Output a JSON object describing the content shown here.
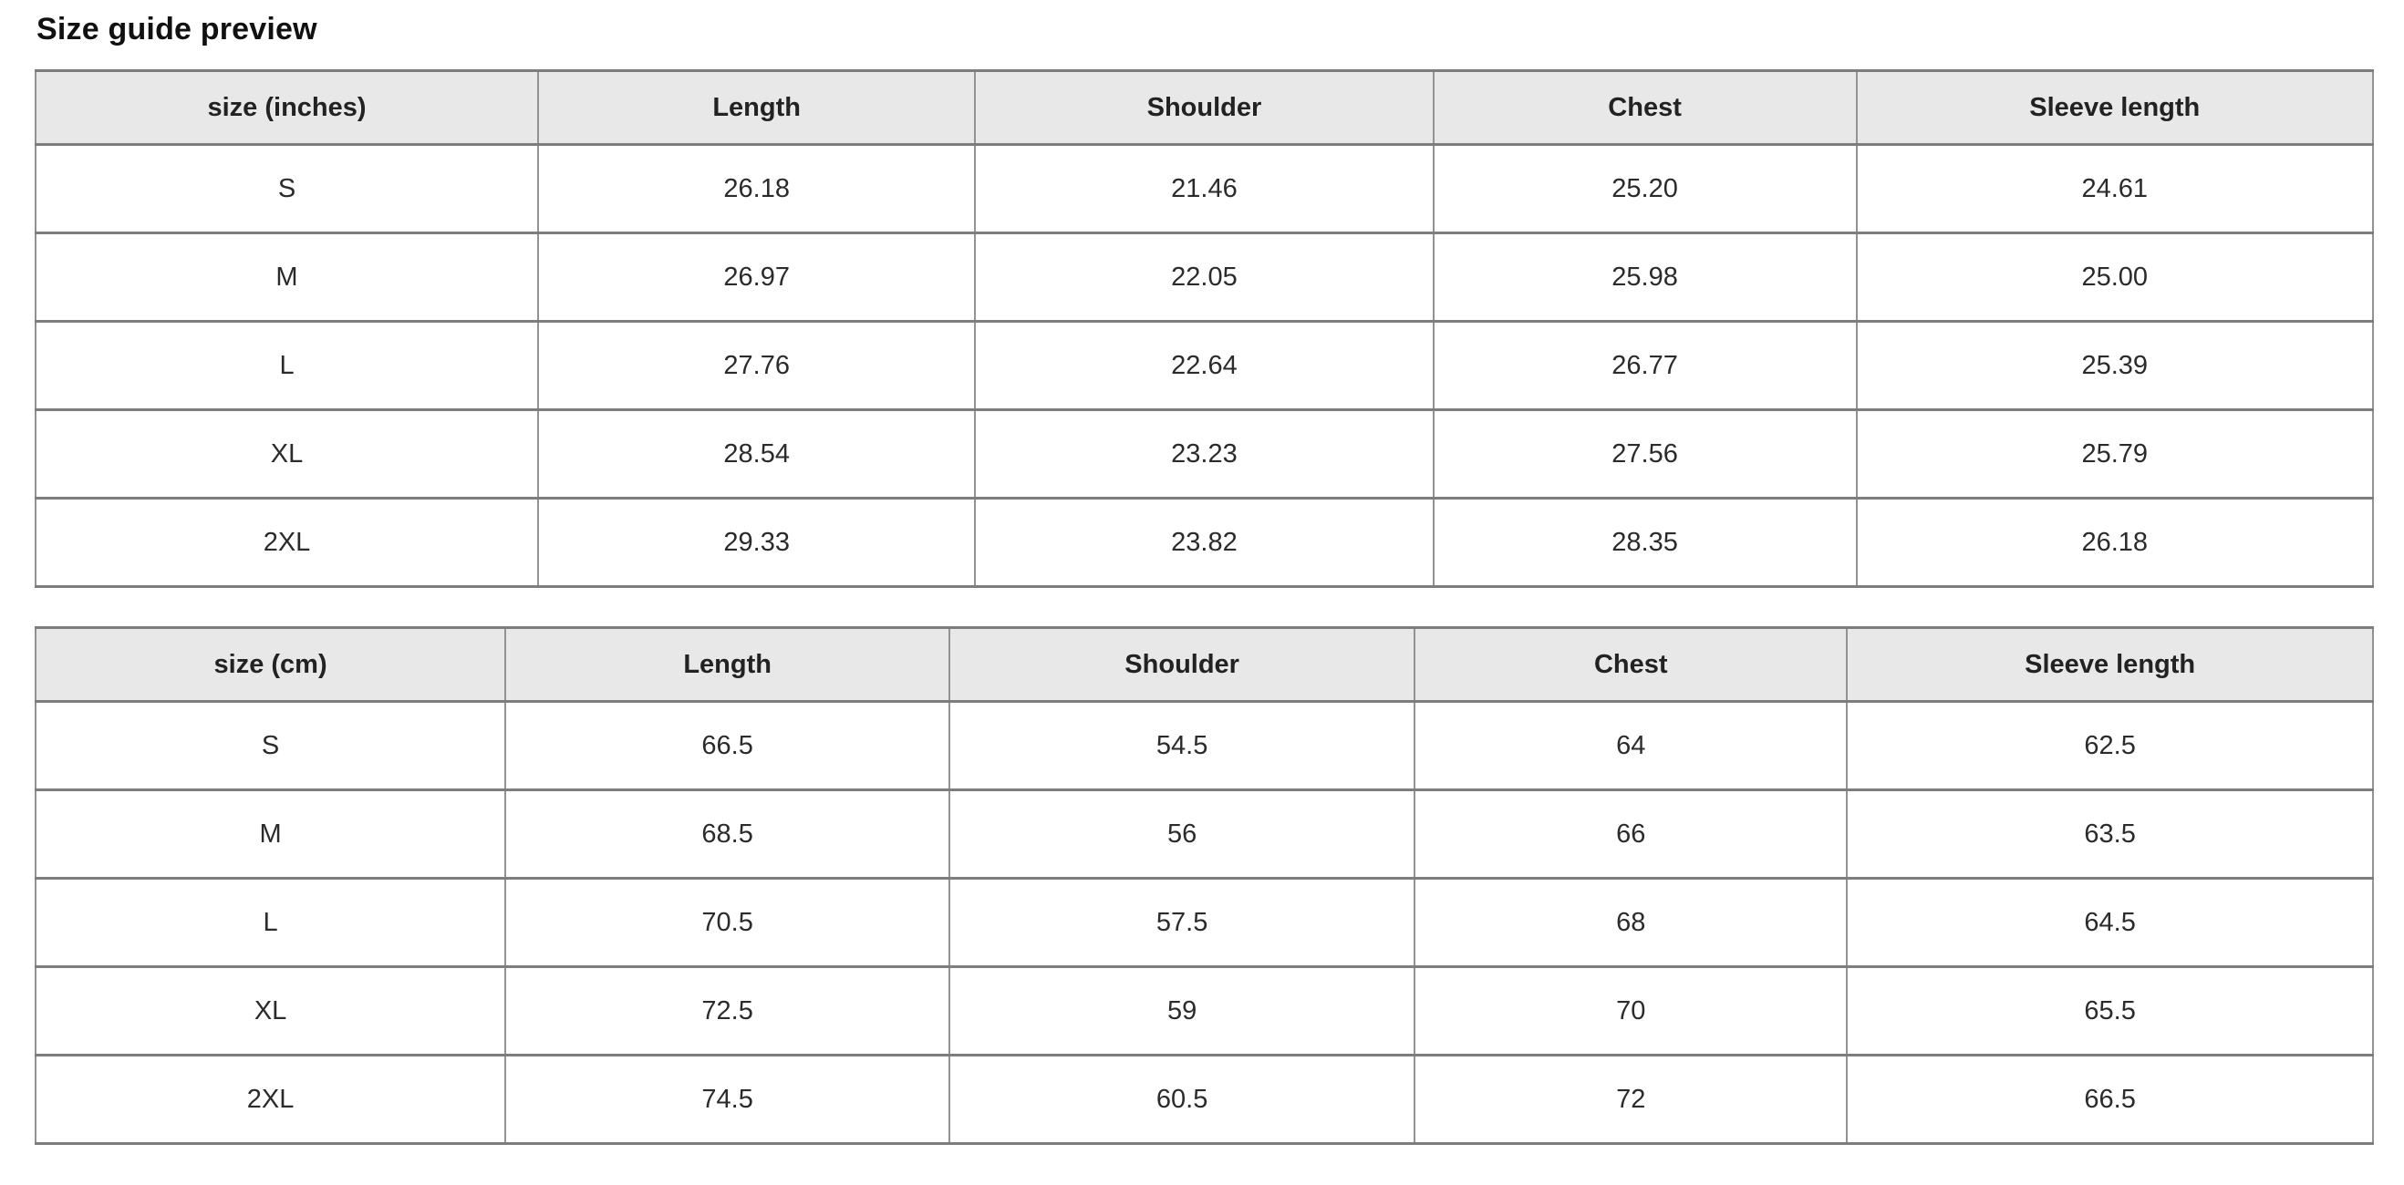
{
  "page": {
    "title": "Size guide preview"
  },
  "colors": {
    "header_bg": "#e8e8e8",
    "border": "#8a8a8a",
    "text": "#2b2b2b",
    "title_text": "#111111"
  },
  "tables": [
    {
      "name": "size-guide-inches",
      "columns": [
        "size (inches)",
        "Length",
        "Shoulder",
        "Chest",
        "Sleeve length"
      ],
      "rows": [
        [
          "S",
          "26.18",
          "21.46",
          "25.20",
          "24.61"
        ],
        [
          "M",
          "26.97",
          "22.05",
          "25.98",
          "25.00"
        ],
        [
          "L",
          "27.76",
          "22.64",
          "26.77",
          "25.39"
        ],
        [
          "XL",
          "28.54",
          "23.23",
          "27.56",
          "25.79"
        ],
        [
          "2XL",
          "29.33",
          "23.82",
          "28.35",
          "26.18"
        ]
      ]
    },
    {
      "name": "size-guide-cm",
      "columns": [
        "size (cm)",
        "Length",
        "Shoulder",
        "Chest",
        "Sleeve length"
      ],
      "rows": [
        [
          "S",
          "66.5",
          "54.5",
          "64",
          "62.5"
        ],
        [
          "M",
          "68.5",
          "56",
          "66",
          "63.5"
        ],
        [
          "L",
          "70.5",
          "57.5",
          "68",
          "64.5"
        ],
        [
          "XL",
          "72.5",
          "59",
          "70",
          "65.5"
        ],
        [
          "2XL",
          "74.5",
          "60.5",
          "72",
          "66.5"
        ]
      ]
    }
  ]
}
